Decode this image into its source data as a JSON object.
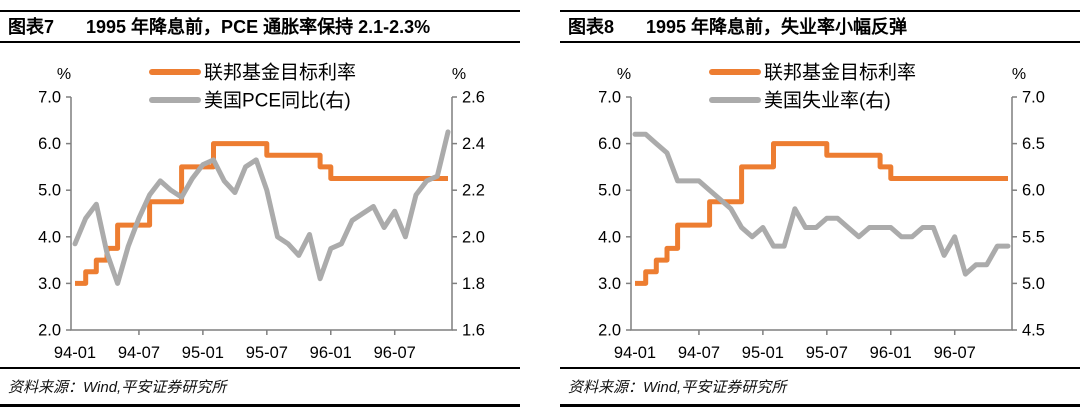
{
  "colors": {
    "fed_funds": "#ED7D31",
    "indicator": "#ABABAB",
    "axis": "#7f7f7f",
    "text": "#000000",
    "border": "#000000"
  },
  "panels": [
    {
      "title_label": "图表7",
      "title_text": "1995 年降息前，PCE 通胀率保持 2.1-2.3%",
      "source_note": "资料来源：Wind,平安证券研究所"
    },
    {
      "title_label": "图表8",
      "title_text": "1995 年降息前，失业率小幅反弹",
      "source_note": "资料来源：Wind,平安证券研究所"
    }
  ],
  "chart_data": [
    {
      "type": "line",
      "title": "1995 年降息前，PCE 通胀率保持 2.1-2.3%",
      "xlabel": "",
      "legend_position": "top",
      "grid": false,
      "x": [
        "94-01",
        "94-02",
        "94-03",
        "94-04",
        "94-05",
        "94-06",
        "94-07",
        "94-08",
        "94-09",
        "94-10",
        "94-11",
        "94-12",
        "95-01",
        "95-02",
        "95-03",
        "95-04",
        "95-05",
        "95-06",
        "95-07",
        "95-08",
        "95-09",
        "95-10",
        "95-11",
        "95-12",
        "96-01",
        "96-02",
        "96-03",
        "96-04",
        "96-05",
        "96-06",
        "96-07",
        "96-08",
        "96-09",
        "96-10",
        "96-11",
        "96-12"
      ],
      "x_tick_labels": [
        "94-01",
        "94-07",
        "95-01",
        "95-07",
        "96-01",
        "96-07"
      ],
      "left_axis": {
        "label": "%",
        "min": 2.0,
        "max": 7.0,
        "ticks": [
          "7.0",
          "6.0",
          "5.0",
          "4.0",
          "3.0",
          "2.0"
        ]
      },
      "right_axis": {
        "label": "%",
        "min": 1.6,
        "max": 2.6,
        "ticks": [
          "2.6",
          "2.4",
          "2.2",
          "2.0",
          "1.8",
          "1.6"
        ]
      },
      "series": [
        {
          "name": "联邦基金目标利率",
          "data_name": "fed-funds-target-line",
          "axis": "left",
          "style": "step",
          "color": "#ED7D31",
          "values": [
            3.0,
            3.25,
            3.5,
            3.75,
            4.25,
            4.25,
            4.25,
            4.75,
            4.75,
            4.75,
            5.5,
            5.5,
            5.5,
            6.0,
            6.0,
            6.0,
            6.0,
            6.0,
            5.75,
            5.75,
            5.75,
            5.75,
            5.75,
            5.5,
            5.25,
            5.25,
            5.25,
            5.25,
            5.25,
            5.25,
            5.25,
            5.25,
            5.25,
            5.25,
            5.25,
            5.25
          ]
        },
        {
          "name": "美国PCE同比(右)",
          "data_name": "pce-yoy-line",
          "axis": "right",
          "style": "line",
          "color": "#ABABAB",
          "values": [
            1.97,
            2.08,
            2.14,
            1.93,
            1.8,
            1.96,
            2.08,
            2.18,
            2.24,
            2.2,
            2.17,
            2.25,
            2.31,
            2.33,
            2.24,
            2.19,
            2.3,
            2.33,
            2.2,
            2.0,
            1.97,
            1.92,
            2.01,
            1.82,
            1.95,
            1.97,
            2.07,
            2.1,
            2.13,
            2.04,
            2.11,
            2.0,
            2.18,
            2.24,
            2.26,
            2.45
          ]
        }
      ]
    },
    {
      "type": "line",
      "title": "1995 年降息前，失业率小幅反弹",
      "xlabel": "",
      "legend_position": "top",
      "grid": false,
      "x": [
        "94-01",
        "94-02",
        "94-03",
        "94-04",
        "94-05",
        "94-06",
        "94-07",
        "94-08",
        "94-09",
        "94-10",
        "94-11",
        "94-12",
        "95-01",
        "95-02",
        "95-03",
        "95-04",
        "95-05",
        "95-06",
        "95-07",
        "95-08",
        "95-09",
        "95-10",
        "95-11",
        "95-12",
        "96-01",
        "96-02",
        "96-03",
        "96-04",
        "96-05",
        "96-06",
        "96-07",
        "96-08",
        "96-09",
        "96-10",
        "96-11",
        "96-12"
      ],
      "x_tick_labels": [
        "94-01",
        "94-07",
        "95-01",
        "95-07",
        "96-01",
        "96-07"
      ],
      "left_axis": {
        "label": "%",
        "min": 2.0,
        "max": 7.0,
        "ticks": [
          "7.0",
          "6.0",
          "5.0",
          "4.0",
          "3.0",
          "2.0"
        ]
      },
      "right_axis": {
        "label": "%",
        "min": 4.5,
        "max": 7.0,
        "ticks": [
          "7.0",
          "6.5",
          "6.0",
          "5.5",
          "5.0",
          "4.5"
        ]
      },
      "series": [
        {
          "name": "联邦基金目标利率",
          "data_name": "fed-funds-target-line",
          "axis": "left",
          "style": "step",
          "color": "#ED7D31",
          "values": [
            3.0,
            3.25,
            3.5,
            3.75,
            4.25,
            4.25,
            4.25,
            4.75,
            4.75,
            4.75,
            5.5,
            5.5,
            5.5,
            6.0,
            6.0,
            6.0,
            6.0,
            6.0,
            5.75,
            5.75,
            5.75,
            5.75,
            5.75,
            5.5,
            5.25,
            5.25,
            5.25,
            5.25,
            5.25,
            5.25,
            5.25,
            5.25,
            5.25,
            5.25,
            5.25,
            5.25
          ]
        },
        {
          "name": "美国失业率(右)",
          "data_name": "unemployment-line",
          "axis": "right",
          "style": "line",
          "color": "#ABABAB",
          "values": [
            6.6,
            6.6,
            6.5,
            6.4,
            6.1,
            6.1,
            6.1,
            6.0,
            5.9,
            5.8,
            5.6,
            5.5,
            5.6,
            5.4,
            5.4,
            5.8,
            5.6,
            5.6,
            5.7,
            5.7,
            5.6,
            5.5,
            5.6,
            5.6,
            5.6,
            5.5,
            5.5,
            5.6,
            5.6,
            5.3,
            5.5,
            5.1,
            5.2,
            5.2,
            5.4,
            5.4
          ]
        }
      ]
    }
  ]
}
